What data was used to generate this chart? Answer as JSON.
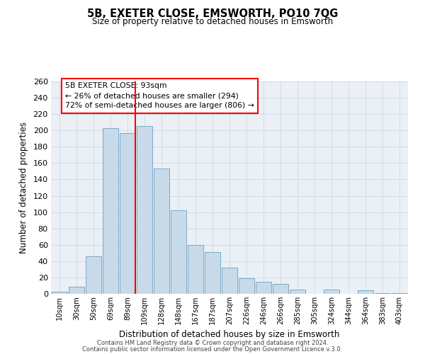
{
  "title": "5B, EXETER CLOSE, EMSWORTH, PO10 7QG",
  "subtitle": "Size of property relative to detached houses in Emsworth",
  "xlabel": "Distribution of detached houses by size in Emsworth",
  "ylabel": "Number of detached properties",
  "categories": [
    "10sqm",
    "30sqm",
    "50sqm",
    "69sqm",
    "89sqm",
    "109sqm",
    "128sqm",
    "148sqm",
    "167sqm",
    "187sqm",
    "207sqm",
    "226sqm",
    "246sqm",
    "266sqm",
    "285sqm",
    "305sqm",
    "324sqm",
    "344sqm",
    "364sqm",
    "383sqm",
    "403sqm"
  ],
  "values": [
    3,
    9,
    46,
    203,
    197,
    205,
    153,
    102,
    60,
    51,
    32,
    19,
    15,
    12,
    5,
    0,
    5,
    0,
    4,
    1,
    1
  ],
  "bar_color": "#c8daea",
  "bar_edge_color": "#7aaac8",
  "red_line_bar_index": 4,
  "ylim": [
    0,
    260
  ],
  "yticks": [
    0,
    20,
    40,
    60,
    80,
    100,
    120,
    140,
    160,
    180,
    200,
    220,
    240,
    260
  ],
  "grid_color": "#d0d8e0",
  "background_color": "#eaf0f6",
  "annotation_title": "5B EXETER CLOSE: 93sqm",
  "annotation_line1": "← 26% of detached houses are smaller (294)",
  "annotation_line2": "72% of semi-detached houses are larger (806) →",
  "footer_line1": "Contains HM Land Registry data © Crown copyright and database right 2024.",
  "footer_line2": "Contains public sector information licensed under the Open Government Licence v.3.0."
}
